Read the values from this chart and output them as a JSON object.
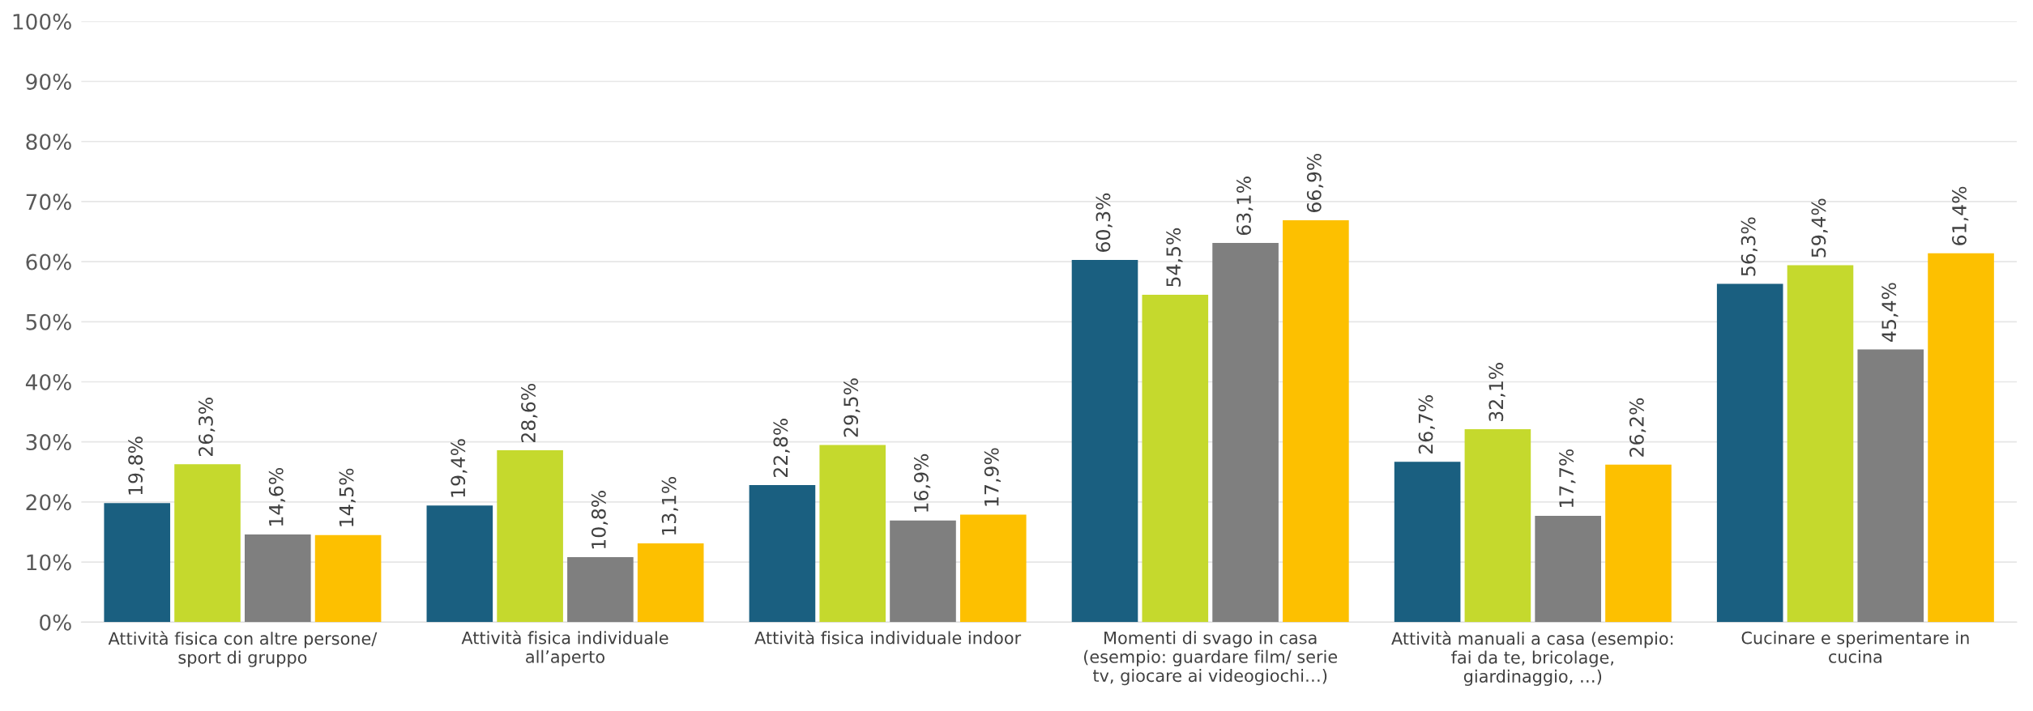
{
  "chart_data": {
    "type": "bar",
    "categories": [
      "Attività fisica con altre persone/\nsport di gruppo",
      "Attività fisica individuale\nall’aperto",
      "Attività fisica individuale indoor",
      "Momenti di svago in casa\n(esempio: guardare film/ serie\ntv, giocare ai videogiochi…)",
      "Attività manuali a casa (esempio:\nfai da te, bricolage,\ngiardinaggio, …)",
      "Cucinare e sperimentare in\ncucina"
    ],
    "series": [
      {
        "color": "#1a5f80",
        "values": [
          19.8,
          19.4,
          22.8,
          60.3,
          26.7,
          56.3
        ],
        "value_labels": [
          "19,8%",
          "19,4%",
          "22,8%",
          "60,3%",
          "26,7%",
          "56,3%"
        ]
      },
      {
        "color": "#c5d92d",
        "values": [
          26.3,
          28.6,
          29.5,
          54.5,
          32.1,
          59.4
        ],
        "value_labels": [
          "26,3%",
          "28,6%",
          "29,5%",
          "54,5%",
          "32,1%",
          "59,4%"
        ]
      },
      {
        "color": "#7f7f7f",
        "values": [
          14.6,
          10.8,
          16.9,
          63.1,
          17.7,
          45.4
        ],
        "value_labels": [
          "14,6%",
          "10,8%",
          "16,9%",
          "63,1%",
          "17,7%",
          "45,4%"
        ]
      },
      {
        "color": "#fdc000",
        "values": [
          14.5,
          13.1,
          17.9,
          66.9,
          26.2,
          61.4
        ],
        "value_labels": [
          "14,5%",
          "13,1%",
          "17,9%",
          "66,9%",
          "26,2%",
          "61,4%"
        ]
      }
    ],
    "ylim": [
      0,
      100
    ],
    "yticks": [
      {
        "value": 0,
        "label": "0%"
      },
      {
        "value": 10,
        "label": "10%"
      },
      {
        "value": 20,
        "label": "20%"
      },
      {
        "value": 30,
        "label": "30%"
      },
      {
        "value": 40,
        "label": "40%"
      },
      {
        "value": 50,
        "label": "50%"
      },
      {
        "value": 60,
        "label": "60%"
      },
      {
        "value": 70,
        "label": "70%"
      },
      {
        "value": 80,
        "label": "80%"
      },
      {
        "value": 90,
        "label": "90%"
      },
      {
        "value": 100,
        "label": "100%"
      }
    ],
    "grid": "y",
    "legend": false
  }
}
